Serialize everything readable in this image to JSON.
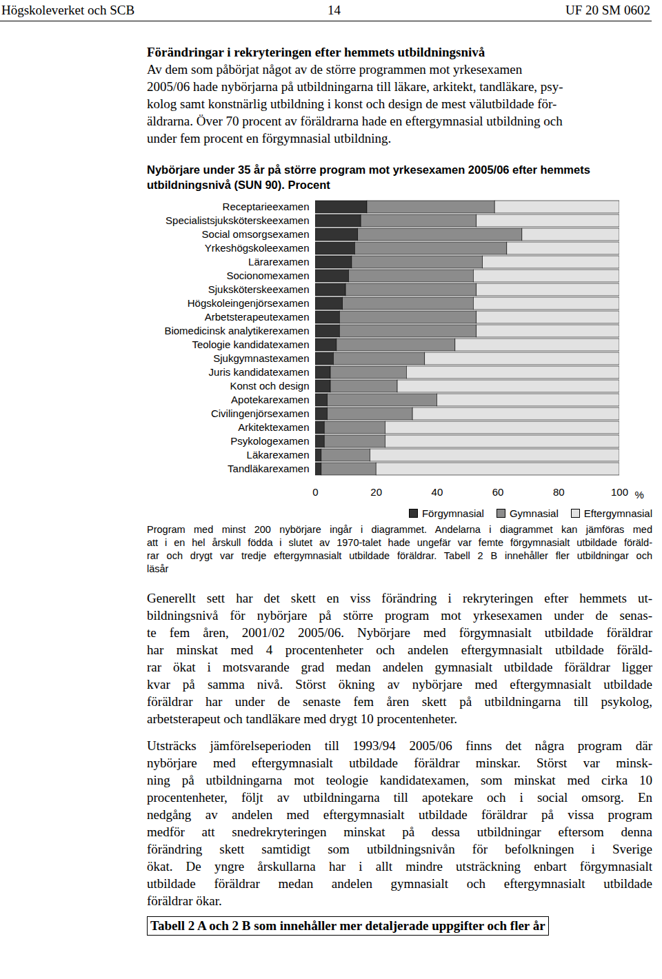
{
  "header": {
    "left": "Högskoleverket och SCB",
    "center": "14",
    "right": "UF 20 SM 0602"
  },
  "heading": "Förändringar i rekryteringen efter hemmets utbildningsnivå",
  "intro": [
    "Av dem som påbörjat något av de större programmen mot yrkesexamen",
    "2005/06 hade nybörjarna på utbildningarna till läkare, arkitekt, tandläkare, psy-",
    "kolog samt konstnärlig utbildning i konst och design de mest välutbildade för-",
    "äldrarna. Över 70 procent av föräldrarna hade en eftergymnasial utbildning och",
    "under fem procent en förgymnasial utbildning."
  ],
  "chart_data": {
    "type": "bar",
    "orientation": "horizontal",
    "stacked": true,
    "title": "Nybörjare under 35 år på större program mot yrkesexamen 2005/06  efter hemmets utbildningsnivå (SUN 90). Procent",
    "xlabel": "%",
    "categories": [
      "Receptarieexamen",
      "Specialistsjuksköterskeexamen",
      "Social omsorgsexamen",
      "Yrkeshögskoleexamen",
      "Lärarexamen",
      "Socionomexamen",
      "Sjuksköterskeexamen",
      "Högskoleingenjörsexamen",
      "Arbetsterapeutexamen",
      "Biomedicinsk analytikerexamen",
      "Teologie kandidatexamen",
      "Sjukgymnastexamen",
      "Juris kandidatexamen",
      "Konst och design",
      "Apotekarexamen",
      "Civilingenjörsexamen",
      "Arkitektexamen",
      "Psykologexamen",
      "Läkarexamen",
      "Tandläkarexamen"
    ],
    "series": [
      {
        "name": "Förgymnasial",
        "color": "#333333",
        "values": [
          17,
          15,
          14,
          13,
          12,
          11,
          10,
          9,
          8,
          8,
          7,
          6,
          5,
          5,
          4,
          4,
          3,
          3,
          2,
          2
        ]
      },
      {
        "name": "Gymnasial",
        "color": "#8c8c8c",
        "values": [
          42,
          38,
          54,
          50,
          43,
          41,
          43,
          43,
          45,
          45,
          39,
          30,
          25,
          22,
          36,
          28,
          20,
          20,
          16,
          18
        ]
      },
      {
        "name": "Eftergymnasial",
        "color": "#e2e2e2",
        "values": [
          41,
          47,
          32,
          37,
          45,
          48,
          47,
          48,
          47,
          47,
          54,
          64,
          70,
          73,
          60,
          68,
          77,
          77,
          82,
          80
        ]
      }
    ],
    "xlim": [
      0,
      100
    ],
    "xticks": [
      0,
      20,
      40,
      60,
      80,
      100
    ],
    "legend": "bottom-right"
  },
  "caption": [
    "Program med minst 200 nybörjare ingår i diagrammet. Andelarna i diagrammet kan jämföras med",
    "att i en hel årskull födda i slutet av 1970-talet hade ungefär var femte förgymnasialt utbildade föräld-",
    "rar och drygt var tredje eftergymnasialt utbildade föräldrar. Tabell 2 B innehåller fler utbildningar och",
    "läsår"
  ],
  "paragraphs": [
    [
      "Generellt sett har det skett en viss förändring i rekryteringen efter hemmets ut-",
      "bildningsnivå för nybörjare på större program mot yrkesexamen under de senas-",
      "te fem åren, 2001/02 2005/06. Nybörjare med förgymnasialt utbildade föräldrar",
      "har minskat med 4 procentenheter och andelen eftergymnasialt utbildade föräld-",
      "rar ökat i motsvarande grad medan andelen gymnasialt utbildade föräldrar ligger",
      "kvar på samma nivå. Störst ökning av nybörjare med eftergymnasialt utbildade",
      "föräldrar har under de senaste fem åren skett på utbildningarna till psykolog,",
      "arbetsterapeut och tandläkare med drygt 10 procentenheter."
    ],
    [
      "Utsträcks jämförelseperioden till 1993/94 2005/06 finns det några program där",
      "nybörjare med eftergymnasialt utbildade föräldrar minskar. Störst var minsk-",
      "ning på utbildningarna mot teologie kandidatexamen, som minskat med cirka 10",
      "procentenheter, följt av utbildningarna till apotekare och i social omsorg. En",
      "nedgång av andelen med eftergymnasialt utbildade föräldrar på vissa program",
      "medför att snedrekryteringen minskat på dessa utbildningar eftersom denna",
      "förändring skett samtidigt som utbildningsnivån för befolkningen i Sverige",
      "ökat.  De yngre årskullarna har i allt mindre utsträckning enbart förgymnasialt",
      "utbildade föräldrar medan andelen gymnasialt och eftergymnasialt utbildade",
      "föräldrar ökar."
    ]
  ],
  "footer_box": "Tabell 2 A och 2 B som innehåller mer detaljerade uppgifter och fler år"
}
